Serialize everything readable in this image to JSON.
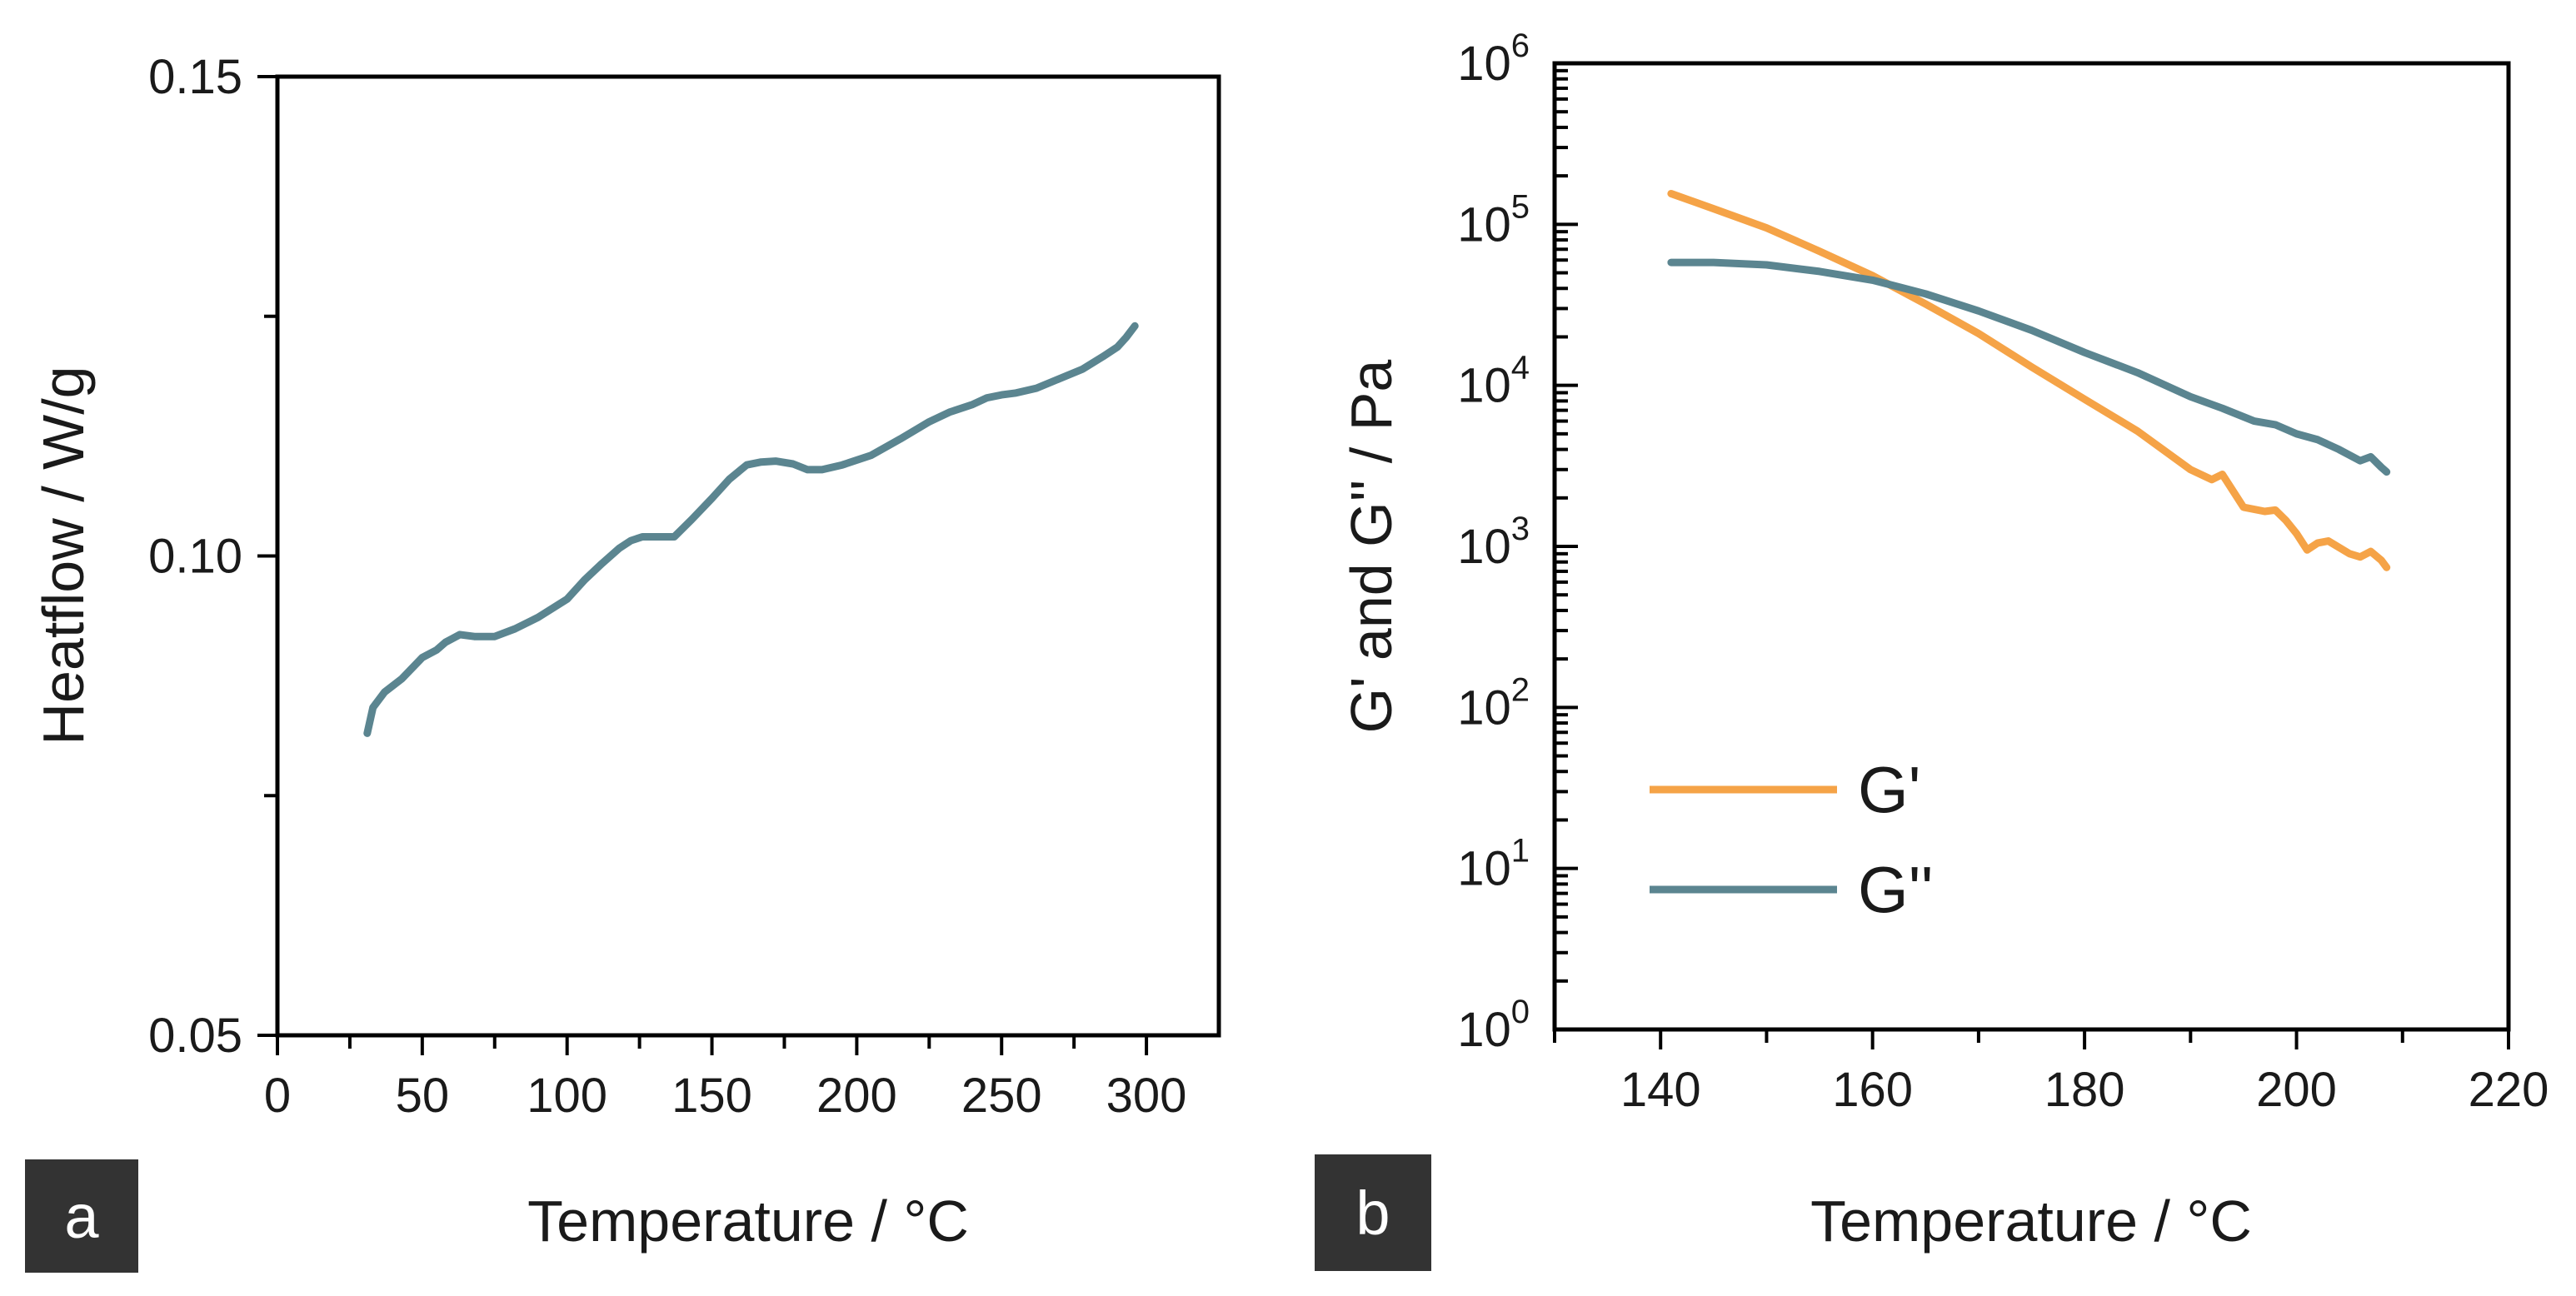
{
  "chart_data": [
    {
      "type": "line",
      "panel_label": "a",
      "title": "",
      "xlabel": "Temperature / °C",
      "ylabel": "Heatflow / W/g",
      "xlim": [
        0,
        325
      ],
      "ylim": [
        0.05,
        0.15
      ],
      "xticks": [
        0,
        50,
        100,
        150,
        200,
        250,
        300
      ],
      "xtick_labels": [
        "0",
        "50",
        "100",
        "150",
        "200",
        "250",
        "300"
      ],
      "xminor": [
        25,
        75,
        125,
        175,
        225,
        275
      ],
      "yticks": [
        0.05,
        0.1,
        0.15
      ],
      "ytick_labels": [
        "0.05",
        "0.10",
        "0.15"
      ],
      "yminor": [
        0.075,
        0.125
      ],
      "grid": false,
      "series": [
        {
          "name": "Heatflow",
          "color": "#5b8590",
          "x": [
            31,
            33,
            37,
            43,
            50,
            55,
            58,
            63,
            68,
            75,
            82,
            90,
            100,
            106,
            112,
            118,
            122,
            126,
            130,
            137,
            143,
            150,
            156,
            162,
            167,
            172,
            178,
            183,
            188,
            195,
            205,
            215,
            225,
            232,
            240,
            245,
            250,
            255,
            262,
            270,
            278,
            285,
            290,
            293,
            296
          ],
          "y": [
            0.0815,
            0.0842,
            0.0858,
            0.0872,
            0.0894,
            0.0902,
            0.091,
            0.0918,
            0.0916,
            0.0916,
            0.0924,
            0.0936,
            0.0955,
            0.0975,
            0.0992,
            0.1008,
            0.1016,
            0.102,
            0.102,
            0.102,
            0.1038,
            0.106,
            0.108,
            0.1095,
            0.1098,
            0.1099,
            0.1096,
            0.109,
            0.109,
            0.1095,
            0.1105,
            0.1122,
            0.114,
            0.115,
            0.1158,
            0.1165,
            0.1168,
            0.117,
            0.1175,
            0.1185,
            0.1195,
            0.1208,
            0.1218,
            0.1228,
            0.124
          ]
        }
      ]
    },
    {
      "type": "line",
      "panel_label": "b",
      "title": "",
      "xlabel": "Temperature / °C",
      "ylabel": "G' and G'' / Pa",
      "xlim": [
        130,
        220
      ],
      "ylim_log10": [
        0,
        6
      ],
      "xticks": [
        140,
        160,
        180,
        200,
        220
      ],
      "xtick_labels": [
        "140",
        "160",
        "180",
        "200",
        "220"
      ],
      "ytick_bases": [
        "10",
        "10",
        "10",
        "10",
        "10",
        "10",
        "10"
      ],
      "ytick_exponents": [
        "0",
        "1",
        "2",
        "3",
        "4",
        "5",
        "6"
      ],
      "yscale": "log",
      "grid": false,
      "legend_position": "lower-left",
      "series": [
        {
          "name": "G'",
          "color": "#f5a347",
          "x": [
            141,
            145,
            150,
            155,
            160,
            165,
            170,
            175,
            180,
            185,
            190,
            192,
            193,
            195,
            197,
            198,
            199,
            200,
            201,
            202,
            203,
            205,
            206,
            207,
            208,
            208.5
          ],
          "y": [
            155000,
            125000,
            95000,
            68000,
            48000,
            32000,
            21000,
            13000,
            8200,
            5200,
            3000,
            2600,
            2800,
            1750,
            1650,
            1680,
            1450,
            1200,
            950,
            1050,
            1080,
            900,
            860,
            930,
            820,
            740
          ]
        },
        {
          "name": "G''",
          "color": "#5b8590",
          "x": [
            141,
            145,
            150,
            155,
            160,
            165,
            170,
            175,
            180,
            185,
            190,
            193,
            196,
            198,
            200,
            202,
            204,
            206,
            207,
            208,
            208.5
          ],
          "y": [
            58000,
            58000,
            56000,
            51000,
            45000,
            37000,
            29000,
            22000,
            16000,
            12000,
            8500,
            7200,
            6000,
            5700,
            5000,
            4600,
            4000,
            3400,
            3600,
            3100,
            2900
          ]
        }
      ]
    }
  ]
}
